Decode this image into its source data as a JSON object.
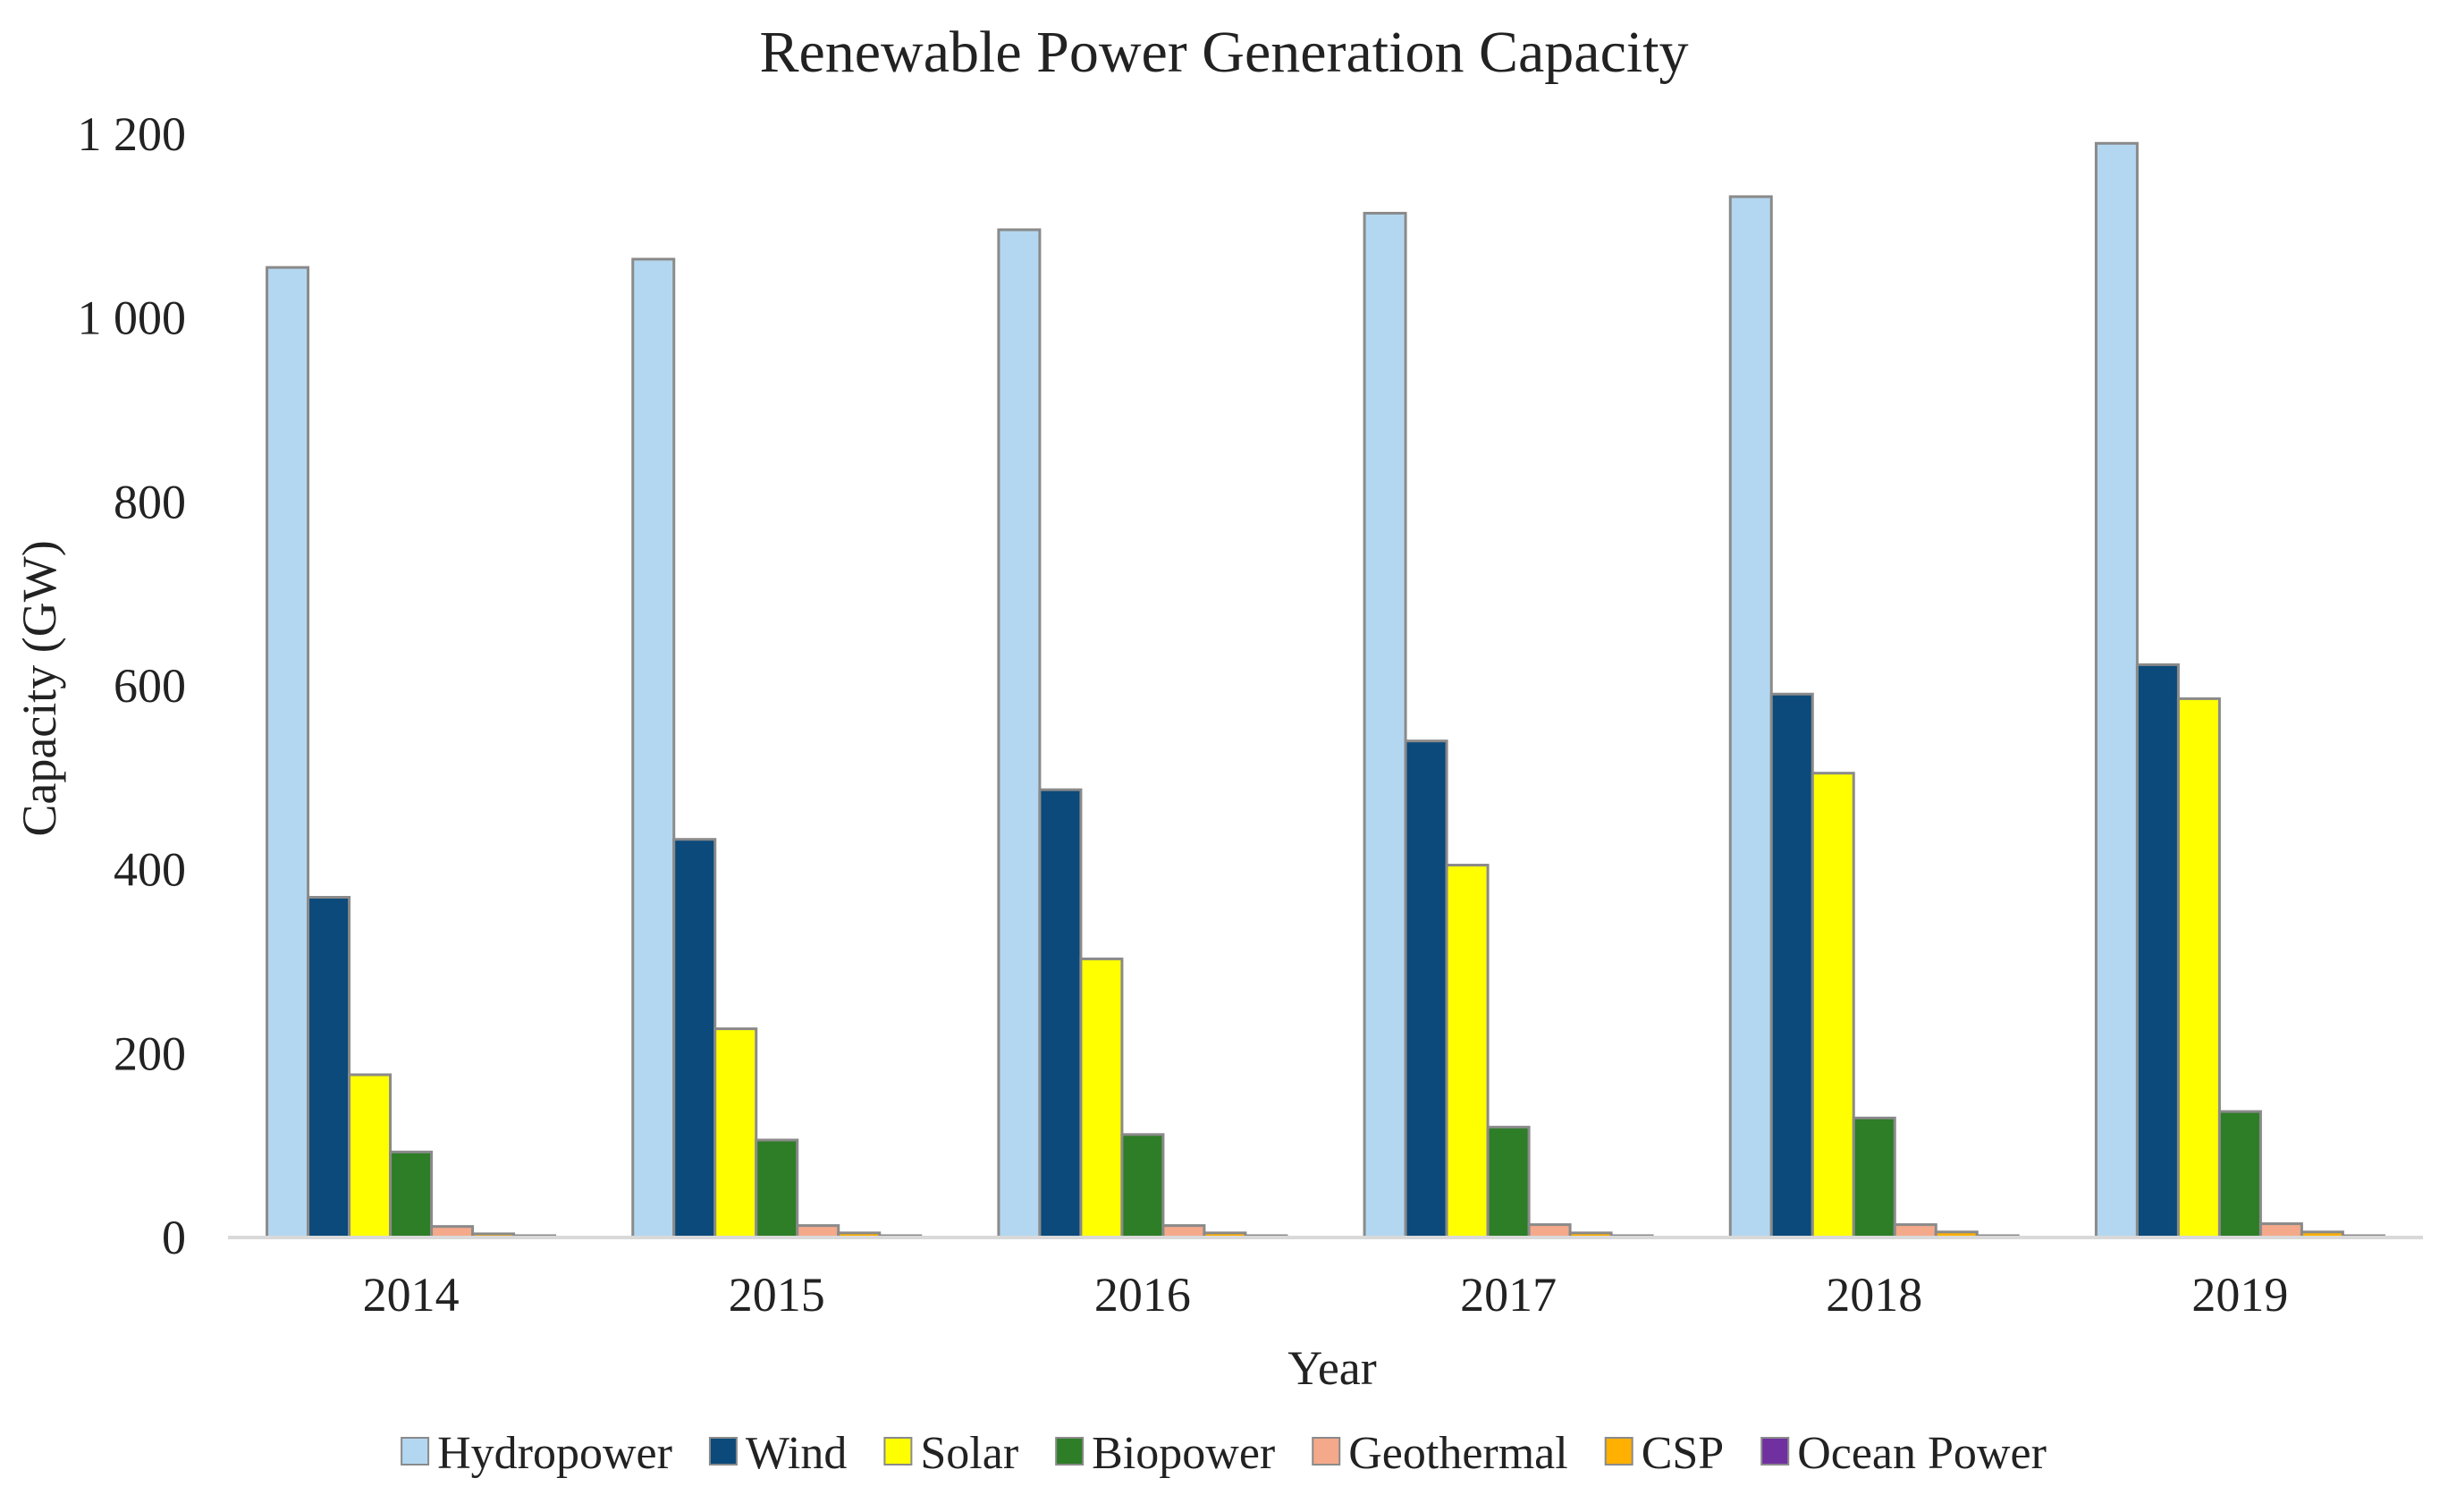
{
  "chart_data": {
    "type": "bar",
    "title": "Renewable Power Generation Capacity",
    "xlabel": "Year",
    "ylabel": "Capacity (GW)",
    "ylim": [
      0,
      1200
    ],
    "yticks": [
      0,
      200,
      400,
      600,
      800,
      1000,
      1200
    ],
    "ytick_labels": [
      "0",
      "200",
      "400",
      "600",
      "800",
      "1 000",
      "1 200"
    ],
    "grid": false,
    "legend_position": "bottom",
    "categories": [
      "2014",
      "2015",
      "2016",
      "2017",
      "2018",
      "2019"
    ],
    "series": [
      {
        "name": "Hydropower",
        "color": "#b3d7f0",
        "values": [
          1055,
          1064,
          1096,
          1114,
          1132,
          1190
        ]
      },
      {
        "name": "Wind",
        "color": "#0b4a7a",
        "values": [
          370,
          433,
          487,
          540,
          591,
          623
        ]
      },
      {
        "name": "Solar",
        "color": "#ffff00",
        "values": [
          177,
          227,
          303,
          405,
          505,
          586
        ]
      },
      {
        "name": "Biopower",
        "color": "#2e7d27",
        "values": [
          93,
          106,
          112,
          120,
          130,
          137
        ]
      },
      {
        "name": "Geothermal",
        "color": "#f4a98a",
        "values": [
          12,
          13,
          13,
          14,
          14,
          15
        ]
      },
      {
        "name": "CSP",
        "color": "#ffb000",
        "values": [
          4,
          5,
          5,
          5,
          6,
          6
        ]
      },
      {
        "name": "Ocean Power",
        "color": "#7030a0",
        "values": [
          0.5,
          0.5,
          0.5,
          0.5,
          0.5,
          0.5
        ]
      }
    ]
  }
}
